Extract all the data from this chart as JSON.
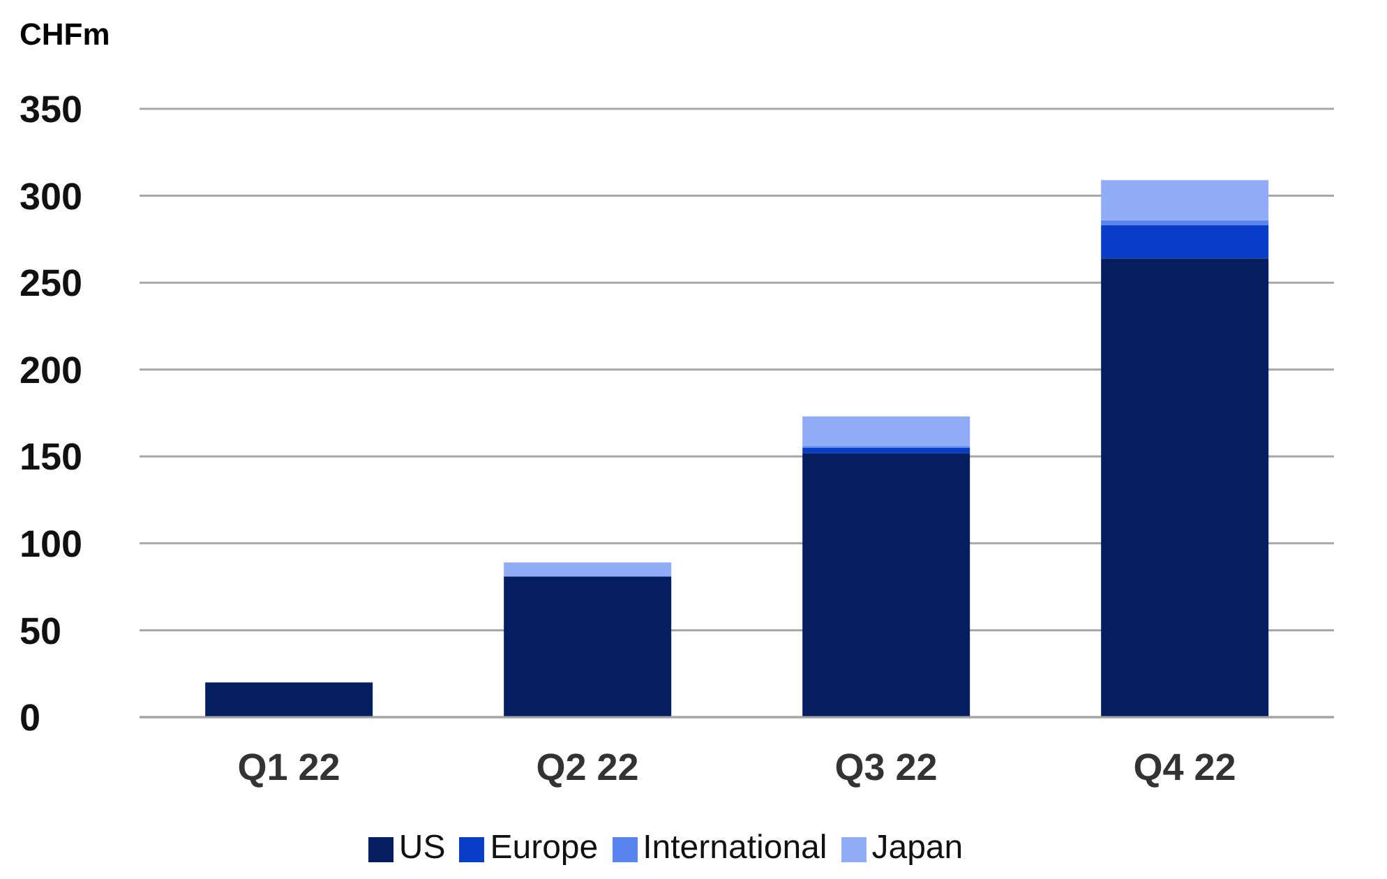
{
  "chart_data": {
    "type": "bar",
    "ylabel": "CHFm",
    "categories": [
      "Q1 22",
      "Q2 22",
      "Q3 22",
      "Q4 22"
    ],
    "stacked": true,
    "series": [
      {
        "name": "US",
        "color": "#041e60",
        "values": [
          20,
          81,
          152,
          264
        ]
      },
      {
        "name": "Europe",
        "color": "#0b3ec8",
        "values": [
          0,
          0,
          3,
          19
        ]
      },
      {
        "name": "International",
        "color": "#5a85f0",
        "values": [
          0,
          0,
          1,
          3
        ]
      },
      {
        "name": "Japan",
        "color": "#91acf7",
        "values": [
          0,
          8,
          17,
          23
        ]
      }
    ],
    "ylim": [
      0,
      350
    ],
    "yticks": [
      0,
      50,
      100,
      150,
      200,
      250,
      300,
      350
    ],
    "grid": "y",
    "legend": "bottom"
  }
}
